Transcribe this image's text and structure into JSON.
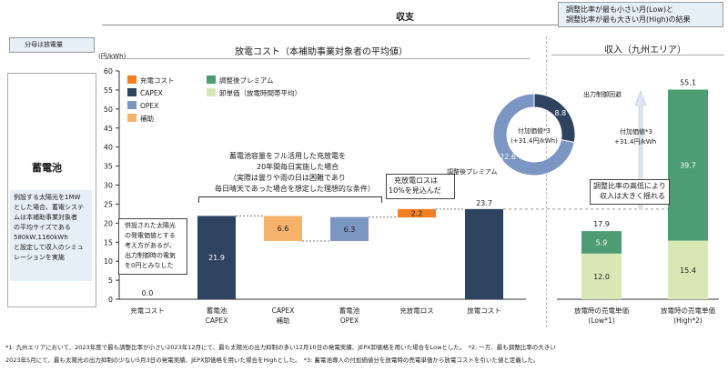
{
  "header": {
    "income_expense": "収支",
    "result_box_line1": "調整比率が最も小さい月(Low)と",
    "result_box_line2": "調整比率が最も大きい月(High)の結果",
    "denominator_note": "分母は放電量",
    "left_title": "放電コスト（本補助事業対象者の平均値）",
    "right_title": "収入（九州エリア）"
  },
  "side": {
    "battery_label": "蓄電池",
    "assumption_lines": [
      "例設する太陽光を1MW",
      "とした場合、蓄電システ",
      "ムは本補助事業対象者",
      "の平均サイズである",
      "580kW,1160kWh",
      "と設定して収入のシミュ",
      "レーションを実施"
    ]
  },
  "annotations": {
    "full_use_lines": [
      "蓄電池容量をフル活用した充放電を",
      "20年間毎日実施した場合",
      "（実際は曇りや雨の日は困難であり",
      "毎日晴天であった場合を想定した理想的な条件）"
    ],
    "loss_lines": [
      "充放電ロスは",
      "10%を見込んだ"
    ],
    "charge_cost_lines": [
      "併設された太陽光",
      "の発電価値とする",
      "考え方があるが、",
      "出力制御時の電気",
      "を0円とみなした"
    ],
    "adjusted_premium": "調整後プレミアム",
    "output_control": "出力制御回避",
    "added_value_right_lines": [
      "付加価値*3",
      "+31.4円/kWh"
    ],
    "donut_center_lines": [
      "付加価値*3",
      "(+31.4円/kWh)"
    ],
    "fluctuation_lines": [
      "調整比率の高低により",
      "収入は大きく揺れる"
    ]
  },
  "footnotes": {
    "line1": "*1: 九州エリアにおいて、2023年度で最も調整比率が小さい2023年12月にて、最も太陽光の出力抑制の多い12月10日の発電実績、JEPX卸価格を用いた場合をLowとした。　*2: 一方、最も調整比率の大きい",
    "line2": "2023年5月にて、最も太陽光の出力抑制の少ない5月3日の発電実績、JEPX卸価格を用いた場合をHighとした。　*3: 蓄電池導入の付加価値分を放電時の売電単価から放電コストを引いた値と定義した。"
  },
  "chart_data": [
    {
      "type": "bar",
      "subtype": "waterfall",
      "ylabel": "(円/kWh)",
      "ylim": [
        0,
        60
      ],
      "yticks": [
        0,
        5,
        10,
        15,
        20,
        25,
        30,
        35,
        40,
        45,
        50,
        55,
        60
      ],
      "gridlines": false,
      "legend_position": "top",
      "legend": [
        {
          "label": "充電コスト",
          "color": "#f28022"
        },
        {
          "label": "CAPEX",
          "color": "#2e4360"
        },
        {
          "label": "OPEX",
          "color": "#7b96c2"
        },
        {
          "label": "補助",
          "color": "#f5b26b"
        },
        {
          "label": "調整後プレミアム",
          "color": "#4d9c74"
        },
        {
          "label": "卸単価（放電時間帯平均）",
          "color": "#d7e8b4"
        }
      ],
      "categories": [
        {
          "lines": [
            "充電コスト"
          ]
        },
        {
          "lines": [
            "蓄電池",
            "CAPEX"
          ]
        },
        {
          "lines": [
            "CAPEX",
            "補助"
          ]
        },
        {
          "lines": [
            "蓄電池",
            "OPEX"
          ]
        },
        {
          "lines": [
            "充放電ロス"
          ]
        },
        {
          "lines": [
            "放電コスト"
          ]
        }
      ],
      "segments": [
        {
          "category": 0,
          "base": 0,
          "value": 0.0,
          "label": "0.0",
          "color": "#f28022",
          "kind": "label_only"
        },
        {
          "category": 1,
          "base": 0,
          "value": 21.9,
          "label": "21.9",
          "color": "#2e4360"
        },
        {
          "category": 2,
          "base": 15.3,
          "value": 6.6,
          "label": "6.6",
          "color": "#f5b26b"
        },
        {
          "category": 3,
          "base": 15.3,
          "value": 6.3,
          "label": "6.3",
          "color": "#7b96c2"
        },
        {
          "category": 4,
          "base": 21.5,
          "value": 2.2,
          "label": "2.2",
          "color": "#f28022"
        },
        {
          "category": 5,
          "base": 0,
          "value": 23.7,
          "label": "23.7",
          "color": "#2e4360"
        }
      ]
    },
    {
      "type": "bar",
      "subtype": "stacked",
      "ylim": [
        0,
        60
      ],
      "categories": [
        {
          "lines": [
            "放電時の売電単価",
            "(Low*1)"
          ]
        },
        {
          "lines": [
            "放電時の売電単価",
            "(High*2)"
          ]
        }
      ],
      "series": [
        {
          "name": "卸単価（放電時間帯平均）",
          "color": "#d7e8b4",
          "values": [
            12.0,
            15.4
          ]
        },
        {
          "name": "調整後プレミアム",
          "color": "#4d9c74",
          "values": [
            5.9,
            39.7
          ]
        }
      ],
      "totals": [
        17.9,
        55.1
      ]
    },
    {
      "type": "pie",
      "subtype": "donut",
      "values": [
        8.8,
        22.6
      ],
      "labels": [
        "8.8",
        "22.6"
      ],
      "colors": [
        "#2e4360",
        "#7b96c2"
      ]
    }
  ]
}
